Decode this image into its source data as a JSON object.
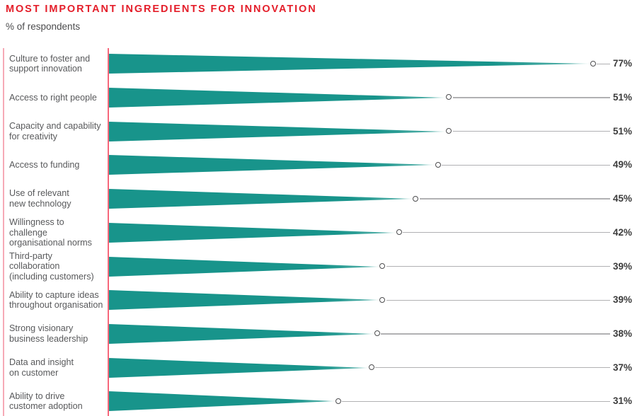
{
  "chart_data": {
    "type": "bar",
    "orientation": "horizontal",
    "title": "MOST IMPORTANT INGREDIENTS FOR INNOVATION",
    "subtitle": "% of respondents",
    "xlabel": "",
    "ylabel": "",
    "unit": "%",
    "grid": false,
    "legend": false,
    "marker": "open-circle",
    "categories": [
      "Culture to foster and\nsupport innovation",
      "Access to right people",
      "Capacity and capability\nfor creativity",
      "Access to funding",
      "Use of relevant\nnew technology",
      "Willingness to challenge\norganisational norms",
      "Third-party collaboration\n(including customers)",
      "Ability to capture ideas\nthroughout organisation",
      "Strong visionary\nbusiness leadership",
      "Data and insight\non customer",
      "Ability to drive\ncustomer adoption"
    ],
    "values": [
      77,
      51,
      51,
      49,
      45,
      42,
      39,
      39,
      38,
      37,
      31
    ],
    "value_labels": [
      "77%",
      "51%",
      "51%",
      "49%",
      "45%",
      "42%",
      "39%",
      "39%",
      "38%",
      "37%",
      "31%"
    ],
    "xlim": [
      0,
      85
    ]
  },
  "colors": {
    "title_red": "#e41e2a",
    "bar_teal": "#18948b",
    "axis_line_pink": "#f6677b",
    "left_line_pink": "#f6aab6",
    "category_text": "#58595b",
    "value_text": "#3c3c3c",
    "connector_gray": "#b1b1b3",
    "marker_border": "#4d4d4f"
  }
}
